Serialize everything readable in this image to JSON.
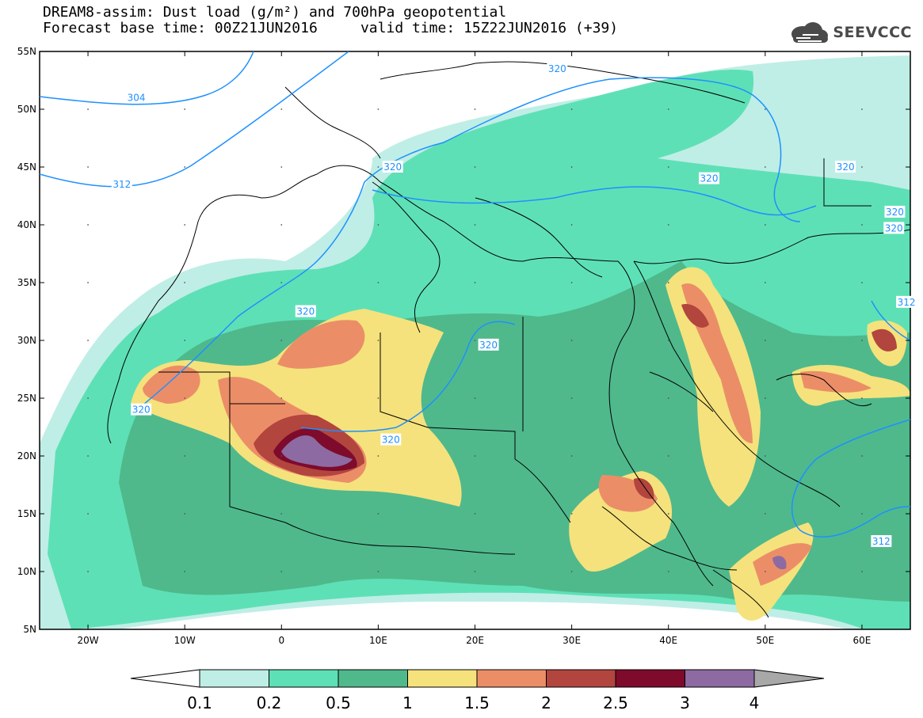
{
  "header": {
    "title_line1": "DREAM8-assim: Dust load (g/m²) and 700hPa geopotential",
    "title_line2": "Forecast base time: 00Z21JUN2016     valid time: 15Z22JUN2016 (+39)",
    "logo_text": "SEEVCCC"
  },
  "map": {
    "projection": "cylindrical",
    "lon_range": [
      -25,
      65
    ],
    "lat_range": [
      5,
      55
    ],
    "lat_labels": [
      "55N",
      "50N",
      "45N",
      "40N",
      "35N",
      "30N",
      "25N",
      "20N",
      "15N",
      "10N",
      "5N"
    ],
    "lon_labels": [
      "20W",
      "10W",
      "0",
      "10E",
      "20E",
      "30E",
      "40E",
      "50E",
      "60E"
    ],
    "contour_labels": [
      {
        "text": "304",
        "lon": -15,
        "lat": 51.0
      },
      {
        "text": "312",
        "lon": -16.5,
        "lat": 43.5
      },
      {
        "text": "320",
        "lon": 2.5,
        "lat": 32.5
      },
      {
        "text": "320",
        "lon": 11.5,
        "lat": 45.0
      },
      {
        "text": "320",
        "lon": -14.5,
        "lat": 24.0
      },
      {
        "text": "320",
        "lon": 11.3,
        "lat": 21.4
      },
      {
        "text": "320",
        "lon": 21.4,
        "lat": 29.6
      },
      {
        "text": "320",
        "lon": 28.5,
        "lat": 53.5
      },
      {
        "text": "320",
        "lon": 44.2,
        "lat": 44.0
      },
      {
        "text": "320",
        "lon": 58.3,
        "lat": 45.0
      },
      {
        "text": "320",
        "lon": 63.4,
        "lat": 41.1
      },
      {
        "text": "320",
        "lon": 63.3,
        "lat": 39.7
      },
      {
        "text": "312",
        "lon": 64.6,
        "lat": 33.3
      },
      {
        "text": "312",
        "lon": 62.0,
        "lat": 12.6
      }
    ],
    "colors": {
      "ocean": "#ffffff",
      "contour_line": "#1e90ff",
      "border": "#000000",
      "grid_dot": "#555555"
    }
  },
  "colorbar": {
    "levels": [
      "0.1",
      "0.2",
      "0.5",
      "1",
      "1.5",
      "2",
      "2.5",
      "3",
      "4"
    ],
    "colors": [
      "#bfeee6",
      "#5ee0b6",
      "#4fb98c",
      "#f5e27c",
      "#eb8e68",
      "#b2453e",
      "#7e0a2c",
      "#8d6aa2"
    ],
    "under_color": "#ffffff",
    "over_color": "#a8a8a8"
  }
}
